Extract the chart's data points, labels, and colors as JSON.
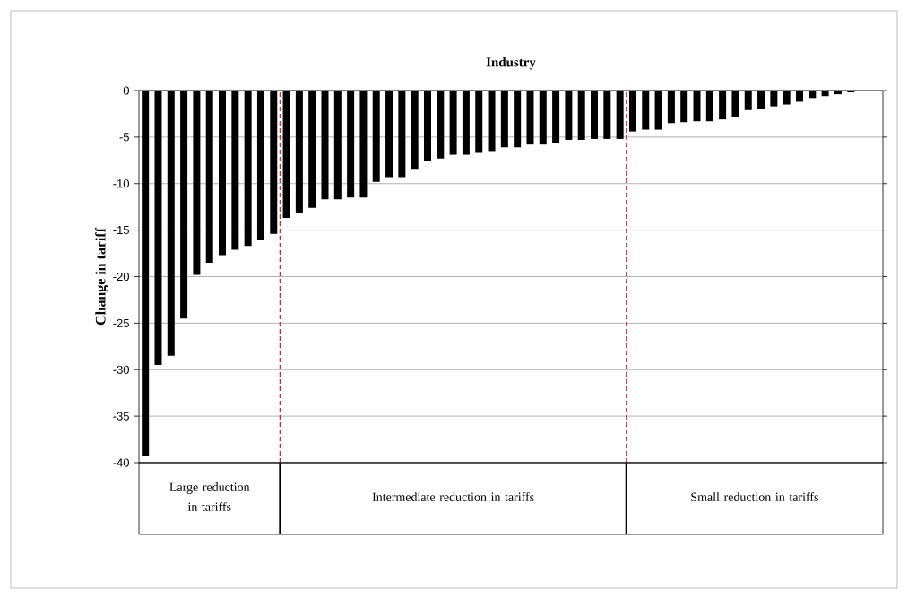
{
  "chart_data": {
    "type": "bar",
    "title": "Industry",
    "ylabel": "Change in tariff",
    "categories": [
      null,
      null,
      null,
      null,
      null,
      null,
      null,
      null,
      null,
      null,
      null,
      null,
      null,
      null,
      null,
      null,
      null,
      null,
      null,
      null,
      null,
      null,
      null,
      null,
      null,
      null,
      null,
      null,
      null,
      null,
      null,
      null,
      null,
      null,
      null,
      null,
      null,
      null,
      null,
      null,
      null,
      null,
      null,
      null,
      null,
      null,
      null,
      null,
      null,
      null,
      null,
      null,
      null,
      null,
      null,
      null,
      null,
      null
    ],
    "values": [
      -39.3,
      -29.5,
      -28.5,
      -24.5,
      -19.8,
      -18.5,
      -17.7,
      -17.1,
      -16.7,
      -16.1,
      -15.4,
      -13.7,
      -13.2,
      -12.6,
      -11.7,
      -11.7,
      -11.5,
      -11.5,
      -9.8,
      -9.3,
      -9.3,
      -8.5,
      -7.6,
      -7.3,
      -6.9,
      -6.9,
      -6.7,
      -6.5,
      -6.1,
      -6.1,
      -5.8,
      -5.8,
      -5.6,
      -5.3,
      -5.3,
      -5.2,
      -5.2,
      -5.2,
      -4.4,
      -4.2,
      -4.2,
      -3.5,
      -3.4,
      -3.3,
      -3.3,
      -3.1,
      -2.8,
      -2.1,
      -2.0,
      -1.7,
      -1.5,
      -1.2,
      -0.8,
      -0.6,
      -0.4,
      -0.2,
      -0.1,
      0
    ],
    "color": "#000000",
    "ylim": [
      -40,
      0
    ],
    "yticks": [
      -40,
      -35,
      -30,
      -25,
      -20,
      -15,
      -10,
      -5,
      0
    ],
    "grid": "y",
    "annotations": [
      "Large reduction in tariffs",
      "Intermediate reduction in tariffs",
      "Small  reduction in tariffs"
    ]
  }
}
